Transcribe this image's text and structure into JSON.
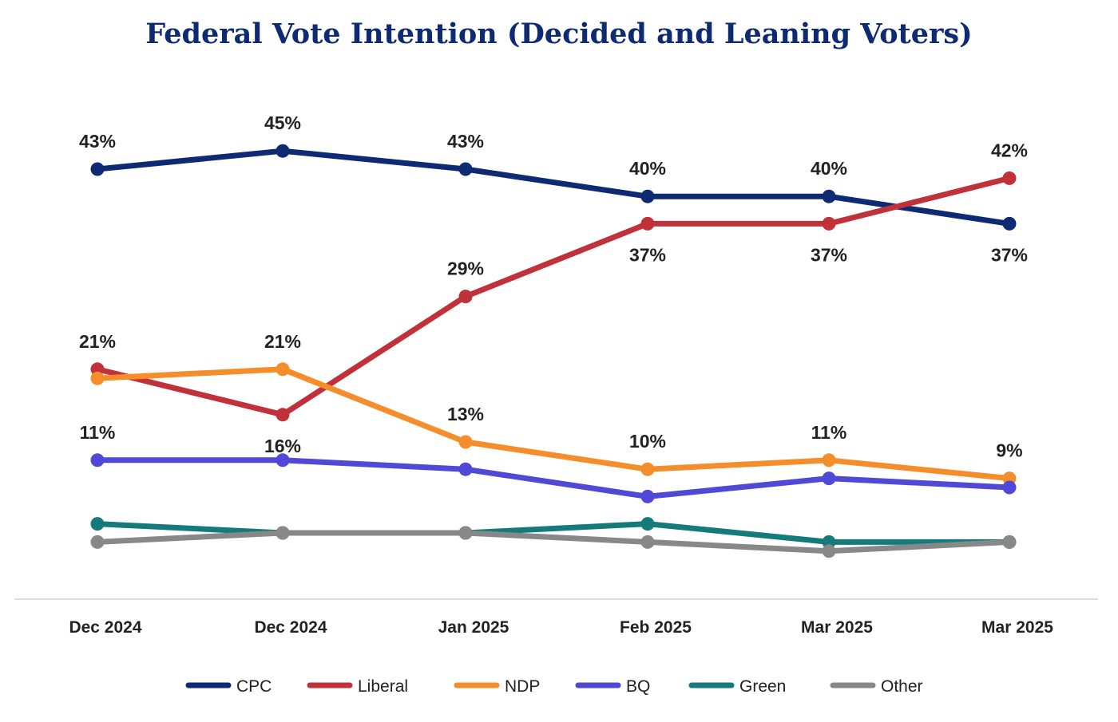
{
  "chart_data": {
    "type": "line",
    "title": "Federal Vote Intention (Decided and Leaning Voters)",
    "categories": [
      "Dec 2024",
      "Dec 2024",
      "Jan 2025",
      "Feb 2025",
      "Mar 2025",
      "Mar 2025"
    ],
    "ylim": [
      0,
      50
    ],
    "grid": false,
    "legend_position": "bottom",
    "series": [
      {
        "name": "CPC",
        "color": "#0d2a72",
        "values": [
          43,
          45,
          43,
          40,
          40,
          37
        ],
        "labels": [
          "43%",
          "45%",
          "43%",
          "40%",
          "40%",
          "37%"
        ]
      },
      {
        "name": "Liberal",
        "color": "#c0313a",
        "values": [
          21,
          16,
          29,
          37,
          37,
          42
        ],
        "labels": [
          "21%",
          "16%",
          "29%",
          "37%",
          "37%",
          "42%"
        ]
      },
      {
        "name": "NDP",
        "color": "#f58d2a",
        "values": [
          20,
          21,
          13,
          10,
          11,
          9
        ],
        "labels": [
          "",
          "21%",
          "13%",
          "10%",
          "11%",
          "9%"
        ]
      },
      {
        "name": "BQ",
        "color": "#5048d6",
        "values": [
          11,
          11,
          10,
          7,
          9,
          8
        ],
        "labels": [
          "11%",
          "",
          "",
          "",
          "",
          ""
        ]
      },
      {
        "name": "Green",
        "color": "#157a7a",
        "values": [
          4,
          3,
          3,
          4,
          2,
          2
        ],
        "labels": [
          "",
          "",
          "",
          "",
          "",
          ""
        ]
      },
      {
        "name": "Other",
        "color": "#888888",
        "values": [
          2,
          3,
          3,
          2,
          1,
          2
        ],
        "labels": [
          "",
          "",
          "",
          "",
          "",
          ""
        ]
      }
    ]
  }
}
